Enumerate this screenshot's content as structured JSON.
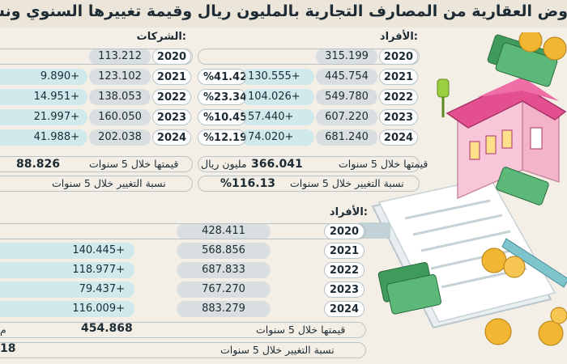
{
  "title": "روض العقارية من المصارف التجارية بالمليون ريال وقيمة تغييرها السنوي ونسبة التغ",
  "companies": {
    "title": "الشركات:",
    "rows": [
      {
        "year": "2020",
        "value": "113.212",
        "increase": ""
      },
      {
        "year": "2021",
        "value": "123.102",
        "increase": "9.890+"
      },
      {
        "year": "2022",
        "value": "138.053",
        "increase": "14.951+"
      },
      {
        "year": "2023",
        "value": "160.050",
        "increase": "21.997+"
      },
      {
        "year": "2024",
        "value": "202.038",
        "increase": "41.988+"
      }
    ],
    "total_label": "قيمتها خلال 5 سنوات",
    "total_value": "88.826",
    "change_label": "نسبة التغيير خلال 5 سنوات"
  },
  "individuals_1": {
    "title": "الأفراد:",
    "rows": [
      {
        "year": "2020",
        "value": "315.199",
        "increase": "",
        "pct": ""
      },
      {
        "year": "2021",
        "value": "445.754",
        "increase": "130.555+",
        "pct": "%41.42"
      },
      {
        "year": "2022",
        "value": "549.780",
        "increase": "104.026+",
        "pct": "%23.34"
      },
      {
        "year": "2023",
        "value": "607.220",
        "increase": "57.440+",
        "pct": "%10.45"
      },
      {
        "year": "2024",
        "value": "681.240",
        "increase": "74.020+",
        "pct": "%12.19"
      }
    ],
    "total_label": "قيمتها خلال 5 سنوات",
    "total_value": "366.041",
    "total_unit": "مليون ريال",
    "change_label": "نسبة التغيير خلال 5 سنوات",
    "change_value": "%116.13"
  },
  "individuals_2": {
    "title": "الأفراد:",
    "rows": [
      {
        "year": "2020",
        "value": "428.411",
        "increase": ""
      },
      {
        "year": "2021",
        "value": "568.856",
        "increase": "140.445+"
      },
      {
        "year": "2022",
        "value": "687.833",
        "increase": "118.977+"
      },
      {
        "year": "2023",
        "value": "767.270",
        "increase": "79.437+"
      },
      {
        "year": "2024",
        "value": "883.279",
        "increase": "116.009+"
      }
    ],
    "total_label": "قيمتها خلال 5 سنوات",
    "total_value": "454.868",
    "change_label": "نسبة التغيير خلال 5 سنوات",
    "change_value_partial": "18",
    "edge_glyph": "م"
  },
  "colors": {
    "background": "#f4efe6",
    "pill_value": "#d9dee0",
    "pill_increase": "#cfe9ec",
    "house_roof": "#e4508f",
    "money_green": "#3f9a5b",
    "coin": "#f2b632"
  },
  "icons": [
    "house-icon",
    "key-icon",
    "coin-icon",
    "banknote-stack-icon",
    "document-icon",
    "pen-icon"
  ]
}
